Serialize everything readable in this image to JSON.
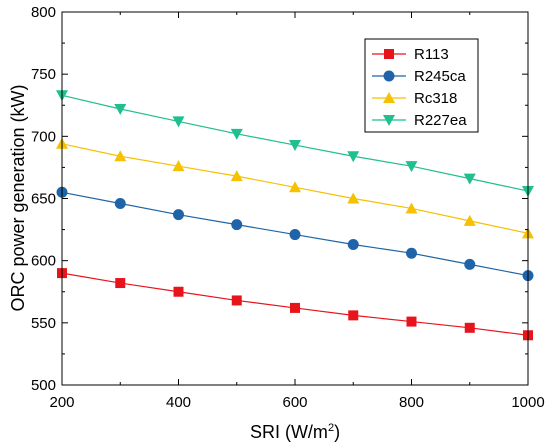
{
  "chart_data": {
    "type": "line",
    "xlabel": "SRI (W/m",
    "xlabel_sup": "2",
    "xlabel_end": ")",
    "ylabel": "ORC power generation (kW)",
    "xlim": [
      200,
      1000
    ],
    "ylim": [
      500,
      800
    ],
    "x_ticks": [
      "200",
      "400",
      "600",
      "800",
      "1000"
    ],
    "y_ticks": [
      "500",
      "550",
      "600",
      "650",
      "700",
      "750",
      "800"
    ],
    "grid": false,
    "legend_position": "top-right",
    "x": [
      200,
      300,
      400,
      500,
      600,
      700,
      800,
      900,
      1000
    ],
    "series": [
      {
        "name": "R113",
        "color": "#e8141c",
        "marker": "square",
        "values": [
          590,
          582,
          575,
          568,
          562,
          556,
          551,
          546,
          540
        ]
      },
      {
        "name": "R245ca",
        "color": "#1f64a8",
        "marker": "circle",
        "values": [
          655,
          646,
          637,
          629,
          621,
          613,
          606,
          597,
          588
        ]
      },
      {
        "name": "Rc318",
        "color": "#f5c100",
        "marker": "triangle-up",
        "values": [
          694,
          684,
          676,
          668,
          659,
          650,
          642,
          632,
          622
        ]
      },
      {
        "name": "R227ea",
        "color": "#1fbf8f",
        "marker": "triangle-down",
        "values": [
          733,
          722,
          712,
          702,
          693,
          684,
          676,
          666,
          656
        ]
      }
    ]
  }
}
